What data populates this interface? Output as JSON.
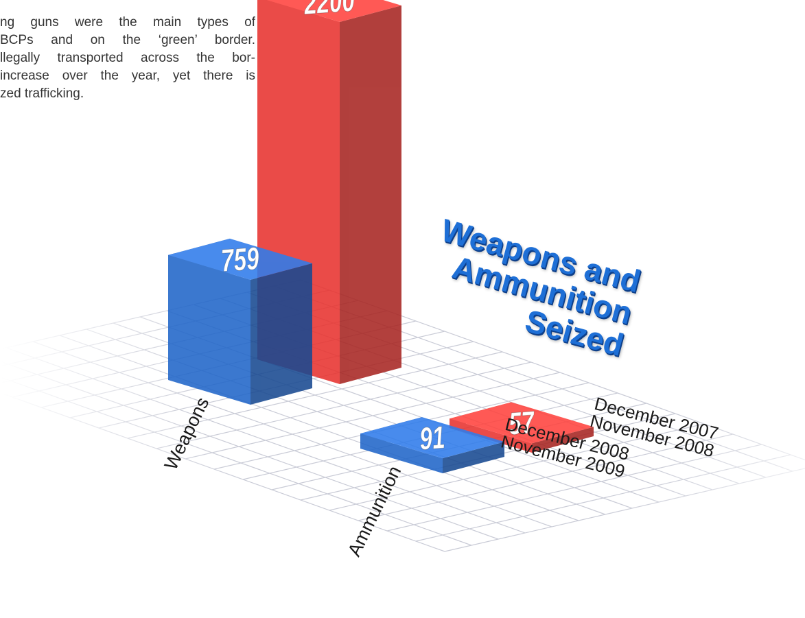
{
  "text": {
    "lines": [
      "ng guns were the main types of",
      "BCPs and on the ‘green’ border.",
      "llegally transported across the bor-",
      " increase over the year, yet there is",
      "zed trafficking."
    ]
  },
  "chart_data": {
    "type": "bar3d",
    "title": "Weapons and Ammunition Seized",
    "categories": [
      "Weapons",
      "Ammunition"
    ],
    "series": [
      {
        "name": "December 2007 November 2008",
        "color": "#e8332f",
        "values": [
          2200,
          57
        ]
      },
      {
        "name": "December 2008 November 2009",
        "color": "#2166c9",
        "values": [
          759,
          91
        ]
      }
    ]
  }
}
